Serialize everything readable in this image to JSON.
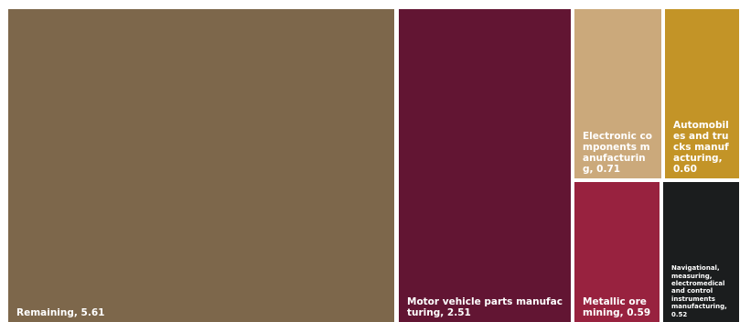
{
  "chart_data": {
    "type": "treemap",
    "items": [
      {
        "label": "Remaining, 5.61",
        "name": "Remaining",
        "value": 5.61,
        "color": "#7d674b"
      },
      {
        "label": "Motor vehicle parts manufacturing, 2.51",
        "name": "Motor vehicle parts manufacturing",
        "value": 2.51,
        "color": "#621533"
      },
      {
        "label": "Electronic components manufacturing, 0.71",
        "name": "Electronic components manufacturing",
        "value": 0.71,
        "color": "#cba97b"
      },
      {
        "label": "Automobiles and trucks manufacturing, 0.60",
        "name": "Automobiles and trucks manufacturing",
        "value": 0.6,
        "color": "#c39427"
      },
      {
        "label": "Metallic ore mining, 0.59",
        "name": "Metallic ore mining",
        "value": 0.59,
        "color": "#98223f"
      },
      {
        "label": "Navigational, measuring, electromedical and control instruments manufacturing, 0.52",
        "name": "Navigational, measuring, electromedical and control instruments manufacturing",
        "value": 0.52,
        "color": "#1b1d1e"
      }
    ]
  }
}
